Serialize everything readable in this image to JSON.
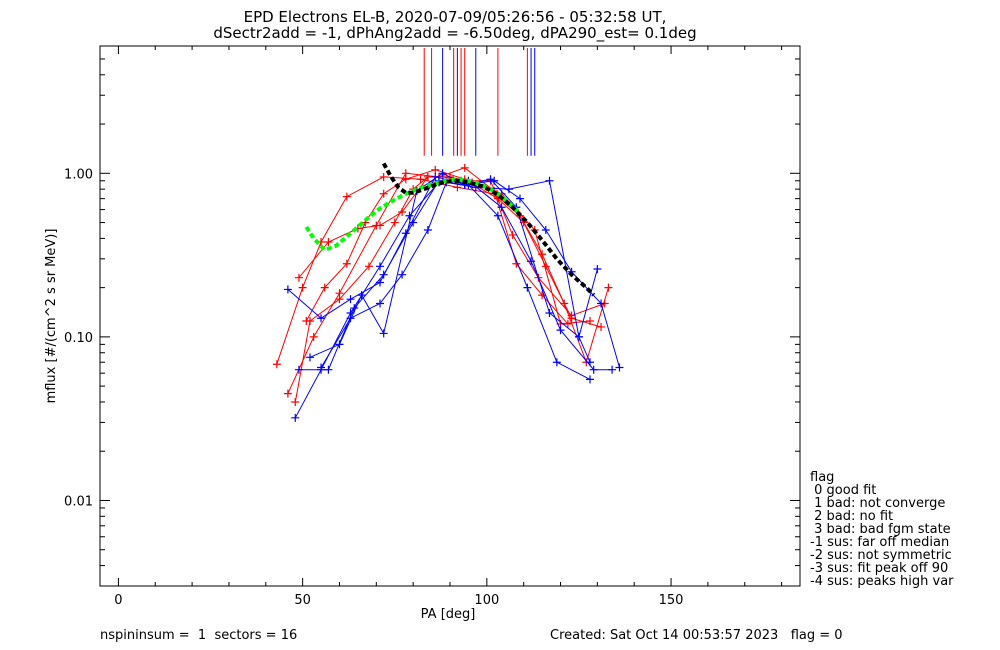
{
  "chart_data": {
    "type": "line",
    "title_lines": [
      "EPD Electrons EL-B, 2020-07-09/05:26:56 - 05:32:58 UT,",
      "dSectr2add = -1, dPhAng2add = -6.50deg, dPA290_est=   0.1deg"
    ],
    "xlabel": "PA [deg]",
    "ylabel": "mflux [#/(cm^2 s sr MeV)]",
    "x_ticks": [
      "0",
      "50",
      "100",
      "150"
    ],
    "x_tick_values": [
      0,
      50,
      100,
      150
    ],
    "y_ticks": [
      "0.01",
      "0.10",
      "1.00"
    ],
    "y_tick_values": [
      0.01,
      0.1,
      1.0
    ],
    "xlim": [
      -5,
      185
    ],
    "ylim": [
      0.003,
      6
    ],
    "y_scale": "log",
    "colors": {
      "red": "#ff0000",
      "blue": "#0000ff",
      "green": "#00ff00",
      "black": "#000000"
    },
    "vlines": {
      "red": [
        83,
        85,
        91,
        93,
        94,
        103,
        111
      ],
      "blue": [
        88,
        92,
        97,
        112,
        113
      ]
    },
    "red_series": [
      {
        "x": [
          43,
          50,
          55,
          62,
          72,
          82,
          92,
          102,
          109,
          115,
          121,
          127,
          133
        ],
        "y": [
          0.068,
          0.2,
          0.38,
          0.72,
          0.95,
          0.92,
          0.82,
          0.75,
          0.55,
          0.32,
          0.16,
          0.07,
          0.2
        ]
      },
      {
        "x": [
          48,
          52,
          60,
          68,
          75,
          80,
          84,
          88,
          93,
          101,
          107,
          114,
          123,
          132
        ],
        "y": [
          0.04,
          0.125,
          0.17,
          0.27,
          0.5,
          0.8,
          0.95,
          0.95,
          0.9,
          0.9,
          0.42,
          0.23,
          0.135,
          0.16
        ]
      },
      {
        "x": [
          51,
          56,
          62,
          67,
          72,
          78,
          86,
          94,
          103,
          110,
          116,
          123,
          131
        ],
        "y": [
          0.125,
          0.2,
          0.28,
          0.5,
          0.75,
          0.92,
          1.05,
          0.92,
          0.7,
          0.5,
          0.27,
          0.13,
          0.115
        ]
      },
      {
        "x": [
          49,
          57,
          65,
          71,
          77,
          84,
          90,
          96,
          104,
          113,
          120,
          128
        ],
        "y": [
          0.23,
          0.38,
          0.46,
          0.48,
          0.58,
          0.95,
          0.95,
          0.88,
          0.75,
          0.45,
          0.12,
          0.125
        ]
      },
      {
        "x": [
          46,
          53,
          60,
          70,
          78,
          87,
          94,
          102,
          108,
          115,
          122
        ],
        "y": [
          0.045,
          0.1,
          0.185,
          0.48,
          1.0,
          0.95,
          1.08,
          0.78,
          0.28,
          0.18,
          0.12
        ]
      }
    ],
    "blue_series": [
      {
        "x": [
          46,
          55,
          63,
          71,
          78,
          86,
          95,
          103,
          111,
          119,
          128
        ],
        "y": [
          0.195,
          0.13,
          0.17,
          0.215,
          0.43,
          0.95,
          0.85,
          0.55,
          0.2,
          0.07,
          0.055
        ]
      },
      {
        "x": [
          48,
          55,
          63,
          71,
          79,
          87,
          95,
          104,
          112,
          120,
          129,
          134
        ],
        "y": [
          0.032,
          0.063,
          0.14,
          0.27,
          0.55,
          0.88,
          0.9,
          0.62,
          0.29,
          0.11,
          0.063,
          0.063
        ]
      },
      {
        "x": [
          49,
          57,
          64,
          72,
          80,
          87,
          94,
          102,
          109,
          116,
          123,
          131,
          136
        ],
        "y": [
          0.063,
          0.063,
          0.15,
          0.24,
          0.5,
          0.9,
          0.85,
          0.9,
          0.7,
          0.45,
          0.25,
          0.16,
          0.065
        ]
      },
      {
        "x": [
          52,
          60,
          66,
          72,
          81,
          88,
          94,
          101,
          108,
          117,
          125,
          130
        ],
        "y": [
          0.075,
          0.09,
          0.18,
          0.105,
          0.78,
          1.0,
          0.85,
          0.92,
          0.62,
          0.14,
          0.1,
          0.26
        ]
      },
      {
        "x": [
          55,
          63,
          71,
          77,
          84,
          89,
          97,
          106,
          117,
          125,
          128
        ],
        "y": [
          0.065,
          0.13,
          0.16,
          0.24,
          0.45,
          0.88,
          0.82,
          0.8,
          0.9,
          0.1,
          0.07
        ]
      }
    ],
    "green_fit": {
      "x": [
        51,
        53,
        56,
        59,
        62,
        65,
        68,
        71,
        74,
        77,
        80,
        83,
        86,
        89,
        92,
        95,
        98,
        101,
        104,
        107,
        109
      ],
      "y": [
        0.47,
        0.4,
        0.34,
        0.36,
        0.41,
        0.47,
        0.54,
        0.61,
        0.67,
        0.73,
        0.78,
        0.83,
        0.87,
        0.9,
        0.92,
        0.9,
        0.86,
        0.8,
        0.72,
        0.63,
        0.57
      ]
    },
    "black_fit": {
      "x": [
        72,
        74,
        76,
        78,
        80,
        83,
        86,
        89,
        92,
        95,
        99,
        103,
        107,
        111,
        115,
        119,
        123,
        127,
        129
      ],
      "y": [
        1.15,
        0.95,
        0.82,
        0.76,
        0.76,
        0.8,
        0.85,
        0.89,
        0.9,
        0.88,
        0.83,
        0.74,
        0.62,
        0.5,
        0.39,
        0.3,
        0.24,
        0.2,
        0.18
      ]
    }
  },
  "legend": {
    "title": "flag",
    "items": [
      " 0 good fit",
      " 1 bad: not converge",
      " 2 bad: no fit",
      " 3 bad: bad fgm state",
      "-1 sus: far off median",
      "-2 sus: not symmetric",
      "-3 sus: fit peak off 90",
      "-4 sus: peaks high var"
    ]
  },
  "footer": {
    "left": "nspininsum =  1  sectors = 16",
    "right": "Created: Sat Oct 14 00:53:57 2023   flag = 0"
  }
}
